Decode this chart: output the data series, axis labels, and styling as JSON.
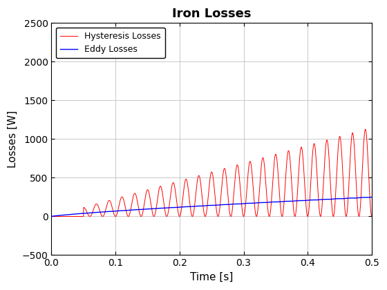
{
  "title": "Iron Losses",
  "xlabel": "Time [s]",
  "ylabel": "Losses [W]",
  "xlim": [
    0,
    0.5
  ],
  "ylim": [
    -500,
    2500
  ],
  "xticks": [
    0,
    0.1,
    0.2,
    0.3,
    0.4,
    0.5
  ],
  "yticks": [
    -500,
    0,
    500,
    1000,
    1500,
    2000,
    2500
  ],
  "hyst_color": "#FF0000",
  "eddy_color": "#0000FF",
  "hyst_label": "Hysteresis Losses",
  "eddy_label": "Eddy Losses",
  "bg_color": "#FFFFFF",
  "grid_color": "#C0C0C0",
  "title_fontsize": 13,
  "label_fontsize": 11,
  "tick_fontsize": 10,
  "legend_fontsize": 9,
  "linewidth_hyst": 0.7,
  "linewidth_eddy": 1.0
}
